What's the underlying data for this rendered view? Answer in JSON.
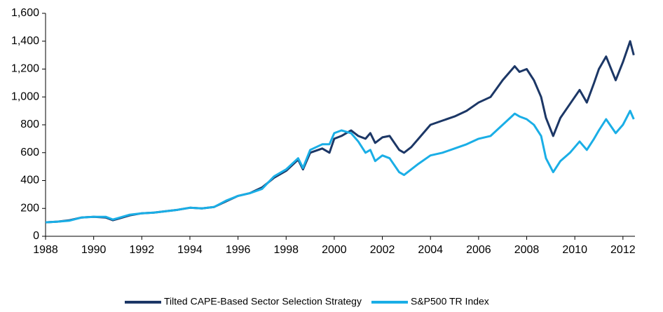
{
  "chart_data": {
    "type": "line",
    "x": [
      1988.0,
      1988.5,
      1989.0,
      1989.5,
      1990.0,
      1990.5,
      1990.8,
      1991.0,
      1991.5,
      1992.0,
      1992.5,
      1993.0,
      1993.5,
      1994.0,
      1994.5,
      1995.0,
      1995.5,
      1996.0,
      1996.5,
      1997.0,
      1997.5,
      1998.0,
      1998.5,
      1998.7,
      1999.0,
      1999.5,
      1999.8,
      2000.0,
      2000.3,
      2000.7,
      2001.0,
      2001.3,
      2001.5,
      2001.7,
      2002.0,
      2002.3,
      2002.7,
      2002.9,
      2003.2,
      2003.5,
      2004.0,
      2004.5,
      2005.0,
      2005.5,
      2006.0,
      2006.5,
      2007.0,
      2007.5,
      2007.7,
      2008.0,
      2008.3,
      2008.6,
      2008.8,
      2009.1,
      2009.4,
      2009.8,
      2010.2,
      2010.5,
      2010.8,
      2011.0,
      2011.3,
      2011.7,
      2012.0,
      2012.3,
      2012.45
    ],
    "series": [
      {
        "name": "Tilted CAPE-Based Sector Selection Strategy",
        "color": "#1c3766",
        "values": [
          100,
          105,
          115,
          135,
          140,
          135,
          115,
          125,
          150,
          165,
          170,
          180,
          190,
          205,
          200,
          210,
          250,
          290,
          310,
          350,
          420,
          470,
          550,
          480,
          600,
          630,
          600,
          700,
          720,
          760,
          720,
          700,
          740,
          670,
          710,
          720,
          620,
          600,
          640,
          700,
          800,
          830,
          860,
          900,
          960,
          1000,
          1120,
          1220,
          1180,
          1200,
          1120,
          1000,
          850,
          720,
          850,
          950,
          1050,
          960,
          1100,
          1200,
          1290,
          1120,
          1250,
          1400,
          1300
        ]
      },
      {
        "name": "S&P500 TR Index",
        "color": "#1aaee6",
        "values": [
          100,
          105,
          112,
          135,
          140,
          140,
          120,
          130,
          155,
          165,
          170,
          180,
          190,
          205,
          200,
          210,
          255,
          290,
          310,
          340,
          430,
          480,
          560,
          490,
          620,
          660,
          660,
          740,
          760,
          740,
          680,
          600,
          620,
          540,
          580,
          560,
          460,
          440,
          480,
          520,
          580,
          600,
          630,
          660,
          700,
          720,
          800,
          880,
          860,
          840,
          800,
          720,
          560,
          460,
          540,
          600,
          680,
          620,
          700,
          760,
          840,
          740,
          800,
          900,
          840
        ]
      }
    ],
    "xlim": [
      1988,
      2012.5
    ],
    "xticks": [
      1988,
      1990,
      1992,
      1994,
      1996,
      1998,
      2000,
      2002,
      2004,
      2006,
      2008,
      2010,
      2012
    ],
    "ylim": [
      0,
      1600
    ],
    "yticks": [
      0,
      200,
      400,
      600,
      800,
      {
        "value": 1000,
        "label": "1,000"
      },
      {
        "value": 1200,
        "label": "1,200"
      },
      {
        "value": 1400,
        "label": "1,400"
      },
      {
        "value": 1600,
        "label": "1,600"
      }
    ],
    "grid": false
  }
}
